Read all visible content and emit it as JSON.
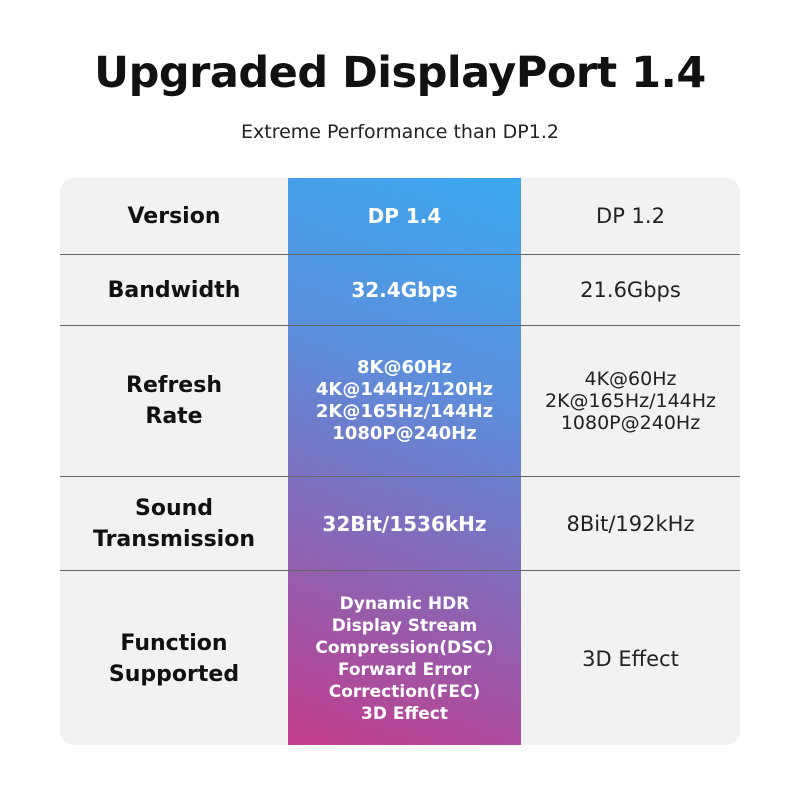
{
  "title": "Upgraded DisplayPort 1.4",
  "subtitle": "Extreme Performance than DP1.2",
  "colors": {
    "gradient_top": "#3aa8ef",
    "gradient_bottom": "#c43c8c",
    "table_bg": "#f2f2f2"
  },
  "rows": [
    {
      "label": "Version",
      "dp14": "DP 1.4",
      "dp12": "DP 1.2"
    },
    {
      "label": "Bandwidth",
      "dp14": "32.4Gbps",
      "dp12": "21.6Gbps"
    },
    {
      "label": "Refresh Rate",
      "dp14": "8K@60Hz\n4K@144Hz/120Hz\n2K@165Hz/144Hz\n1080P@240Hz",
      "dp12": "4K@60Hz\n2K@165Hz/144Hz\n1080P@240Hz"
    },
    {
      "label": "Sound Transmission",
      "dp14": "32Bit/1536kHz",
      "dp12": "8Bit/192kHz"
    },
    {
      "label": "Function Supported",
      "dp14": "Dynamic HDR\nDisplay Stream\nCompression(DSC)\nForward Error\nCorrection(FEC)\n3D Effect",
      "dp12": "3D Effect"
    }
  ]
}
